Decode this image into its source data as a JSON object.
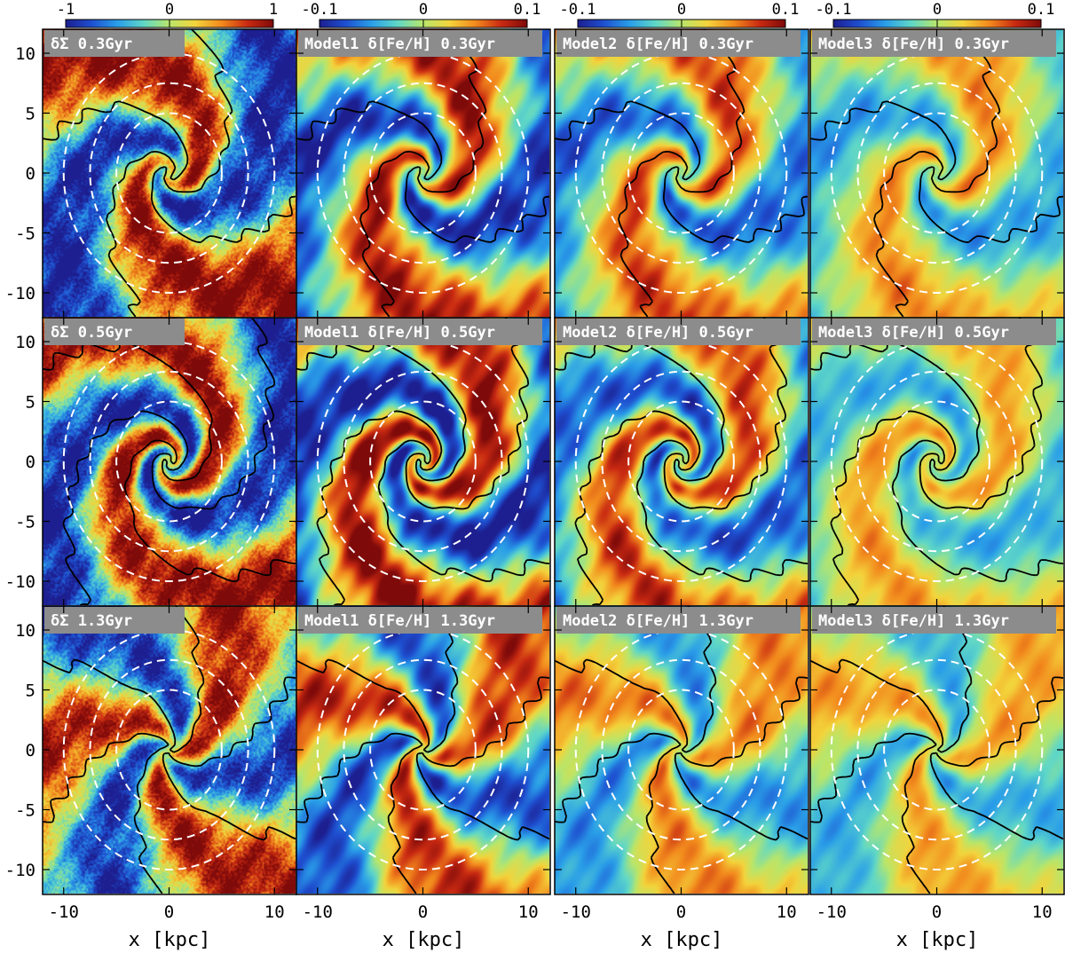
{
  "colors": {
    "colormap": [
      "#1d1e8f",
      "#1e4fd0",
      "#2a9ee8",
      "#5fd7c7",
      "#b9e66a",
      "#f3d43c",
      "#f28a1d",
      "#c92a12",
      "#7e0a0a"
    ],
    "label_box": "#8c8c8c",
    "contour": "#000000",
    "ring": "#ffffff"
  },
  "chart_data": {
    "type": "heatmap",
    "layout": {
      "rows": 3,
      "cols": 4
    },
    "xlabel": "x [kpc]",
    "x_ticks": [
      -10,
      0,
      10
    ],
    "y_ticks": [
      10,
      5,
      0,
      -5,
      -10
    ],
    "xlim": [
      -12,
      12
    ],
    "ylim": [
      -12,
      12
    ],
    "rings_kpc": [
      5,
      7.5,
      10
    ],
    "colorbars": [
      {
        "ticks": [
          "-1",
          "0",
          "1"
        ],
        "range": [
          -1,
          1
        ]
      },
      {
        "ticks": [
          "-0.1",
          "0",
          "0.1"
        ],
        "range": [
          -0.1,
          0.1
        ]
      },
      {
        "ticks": [
          "-0.1",
          "0",
          "0.1"
        ],
        "range": [
          -0.1,
          0.1
        ]
      },
      {
        "ticks": [
          "-0.1",
          "0",
          "0.1"
        ],
        "range": [
          -0.1,
          0.1
        ]
      }
    ],
    "panels": [
      {
        "row": 0,
        "col": 0,
        "label": "δΣ  0.3Gyr",
        "arms": 2,
        "pitch": 1.3,
        "phase": 0.4,
        "amplitude": 1.0
      },
      {
        "row": 0,
        "col": 1,
        "label": "Model1 δ[Fe/H] 0.3Gyr",
        "arms": 2,
        "pitch": 1.3,
        "phase": 1.5,
        "amplitude": 0.9
      },
      {
        "row": 0,
        "col": 2,
        "label": "Model2 δ[Fe/H] 0.3Gyr",
        "arms": 2,
        "pitch": 1.3,
        "phase": 1.6,
        "amplitude": 0.7
      },
      {
        "row": 0,
        "col": 3,
        "label": "Model3 δ[Fe/H] 0.3Gyr",
        "arms": 2,
        "pitch": 1.3,
        "phase": 1.7,
        "amplitude": 0.5
      },
      {
        "row": 1,
        "col": 0,
        "label": "δΣ  0.5Gyr",
        "arms": 2,
        "pitch": 1.8,
        "phase": 2.6,
        "amplitude": 1.0
      },
      {
        "row": 1,
        "col": 1,
        "label": "Model1 δ[Fe/H] 0.5Gyr",
        "arms": 2,
        "pitch": 1.8,
        "phase": 3.6,
        "amplitude": 1.0
      },
      {
        "row": 1,
        "col": 2,
        "label": "Model2 δ[Fe/H] 0.5Gyr",
        "arms": 2,
        "pitch": 1.8,
        "phase": 3.7,
        "amplitude": 0.75
      },
      {
        "row": 1,
        "col": 3,
        "label": "Model3 δ[Fe/H] 0.5Gyr",
        "arms": 2,
        "pitch": 1.8,
        "phase": 3.8,
        "amplitude": 0.45
      },
      {
        "row": 2,
        "col": 0,
        "label": "δΣ  1.3Gyr",
        "arms": 3,
        "pitch": 0.6,
        "phase": 0.0,
        "amplitude": 0.9
      },
      {
        "row": 2,
        "col": 1,
        "label": "Model1 δ[Fe/H] 1.3Gyr",
        "arms": 3,
        "pitch": 0.6,
        "phase": 1.0,
        "amplitude": 0.8
      },
      {
        "row": 2,
        "col": 2,
        "label": "Model2 δ[Fe/H] 1.3Gyr",
        "arms": 3,
        "pitch": 0.6,
        "phase": 1.1,
        "amplitude": 0.55
      },
      {
        "row": 2,
        "col": 3,
        "label": "Model3 δ[Fe/H] 1.3Gyr",
        "arms": 3,
        "pitch": 0.6,
        "phase": 1.2,
        "amplitude": 0.45
      }
    ]
  }
}
